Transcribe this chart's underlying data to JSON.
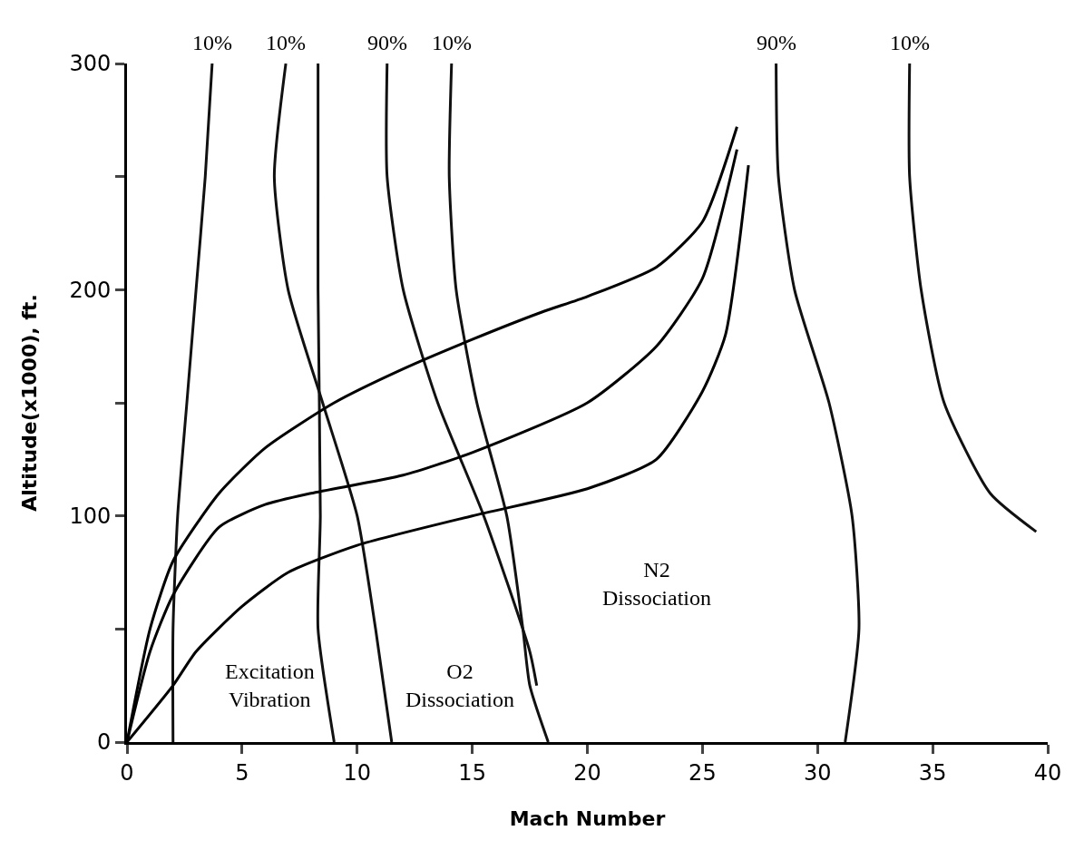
{
  "chart_data": {
    "type": "line",
    "xlabel": "Mach Number",
    "ylabel": "Altitude(x1000), ft.",
    "xlim": [
      0,
      40
    ],
    "ylim": [
      0,
      300
    ],
    "xticks": [
      0,
      5,
      10,
      15,
      20,
      25,
      30,
      35,
      40
    ],
    "yticks": [
      0,
      {
        "value": 50,
        "label": null
      },
      100,
      {
        "value": 150,
        "label": null
      },
      200,
      {
        "value": 250,
        "label": null
      },
      300
    ],
    "marker": "none",
    "line_style": "solid",
    "series": [
      {
        "color": "#111111",
        "x": [
          3.7,
          3.4,
          3.0,
          2.6,
          2.2,
          2.0,
          2.0
        ],
        "values": [
          300,
          250,
          200,
          150,
          100,
          50,
          0
        ]
      },
      {
        "color": "#111111",
        "x": [
          6.9,
          6.4,
          7.0,
          8.5,
          10.0,
          10.8,
          11.5
        ],
        "values": [
          300,
          250,
          200,
          150,
          100,
          50,
          0
        ]
      },
      {
        "color": "#111111",
        "x": [
          8.3,
          8.3,
          8.3,
          8.4,
          8.3,
          9.0
        ],
        "values": [
          300,
          250,
          200,
          100,
          50,
          0
        ]
      },
      {
        "color": "#111111",
        "x": [
          11.3,
          11.3,
          12.0,
          13.5,
          15.5,
          17.5,
          17.8
        ],
        "values": [
          300,
          250,
          200,
          150,
          100,
          40,
          25
        ]
      },
      {
        "color": "#111111",
        "x": [
          14.1,
          14.0,
          14.3,
          15.2,
          16.5,
          17.2,
          17.5,
          18.3
        ],
        "values": [
          300,
          250,
          200,
          150,
          100,
          50,
          25,
          0
        ]
      },
      {
        "color": "#111111",
        "x": [
          28.2,
          28.3,
          29.0,
          30.5,
          31.5,
          31.8,
          31.2
        ],
        "values": [
          300,
          250,
          200,
          150,
          100,
          50,
          0
        ]
      },
      {
        "color": "#111111",
        "x": [
          34.0,
          34.0,
          34.5,
          35.5,
          37.5,
          39.5
        ],
        "values": [
          300,
          250,
          200,
          150,
          110,
          93
        ]
      },
      {
        "color": "#000000",
        "x": [
          0,
          1,
          2,
          4,
          6,
          9,
          12,
          15,
          18,
          20,
          23,
          25,
          26.5
        ],
        "values": [
          0,
          50,
          80,
          110,
          130,
          150,
          165,
          178,
          190,
          197,
          210,
          230,
          272
        ]
      },
      {
        "color": "#000000",
        "x": [
          0,
          1,
          2,
          4,
          6,
          8,
          12,
          15,
          20,
          23,
          25,
          26.5
        ],
        "values": [
          0,
          40,
          65,
          95,
          105,
          110,
          118,
          128,
          150,
          175,
          205,
          262
        ]
      },
      {
        "color": "#000000",
        "x": [
          0,
          2,
          3,
          5,
          7,
          10,
          15,
          20,
          23,
          25,
          26,
          27
        ],
        "values": [
          0,
          25,
          40,
          60,
          75,
          87,
          100,
          112,
          125,
          155,
          180,
          255
        ]
      }
    ],
    "annotations": [
      {
        "text": "10%",
        "x": 3.7,
        "y": 300
      },
      {
        "text": "10%",
        "x": 6.9,
        "y": 300
      },
      {
        "text": "90%",
        "x": 11.3,
        "y": 300
      },
      {
        "text": "10%",
        "x": 14.1,
        "y": 300
      },
      {
        "text": "90%",
        "x": 28.2,
        "y": 300
      },
      {
        "text": "10%",
        "x": 34.0,
        "y": 300
      },
      "Excitation\nVibration",
      "O2\nDissociation",
      "N2\nDissociation"
    ]
  }
}
